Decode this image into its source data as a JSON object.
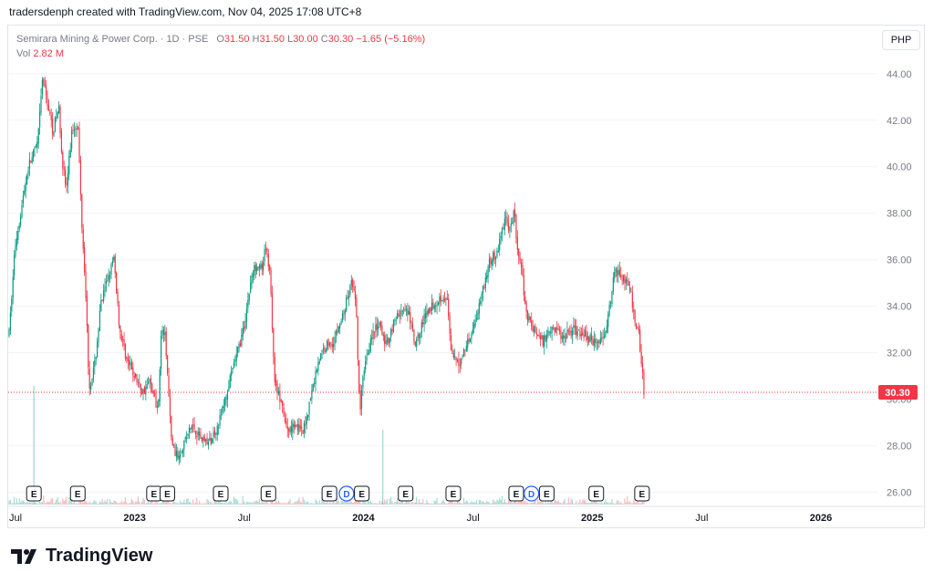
{
  "header": {
    "text": "tradersdenph created with TradingView.com, Nov 04, 2025 17:08 UTC+8"
  },
  "legend": {
    "symbol": "Semirara Mining & Power Corp. · 1D · PSE",
    "open_label": "O",
    "open": "31.50",
    "high_label": "H",
    "high": "31.50",
    "low_label": "L",
    "low": "30.00",
    "close_label": "C",
    "close": "30.30",
    "change": "−1.65 (−5.16%)",
    "vol_label": "Vol",
    "vol": "2.82 M"
  },
  "currency": "PHP",
  "brand": "TradingView",
  "colors": {
    "up": "#089981",
    "down": "#f23645",
    "price_line": "#f23645",
    "grid": "#f0f3fa",
    "axis_text": "#787b86"
  },
  "chart_data": {
    "type": "candlestick",
    "y_axis": {
      "ticks": [
        "44.00",
        "42.00",
        "40.00",
        "38.00",
        "36.00",
        "34.00",
        "32.00",
        "30.00",
        "28.00",
        "26.00"
      ],
      "ylim": [
        25.2,
        45.6
      ]
    },
    "x_axis": {
      "labels": [
        {
          "t": 0,
          "label": "Jul"
        },
        {
          "t": 6,
          "label": "2023"
        },
        {
          "t": 12,
          "label": "Jul"
        },
        {
          "t": 18,
          "label": "2024"
        },
        {
          "t": 24,
          "label": "Jul"
        },
        {
          "t": 30,
          "label": "2025"
        },
        {
          "t": 36,
          "label": "Jul"
        },
        {
          "t": 42,
          "label": "2026"
        }
      ]
    },
    "last_price": {
      "value": 30.3,
      "label": "30.30"
    },
    "price_path": [
      {
        "t": 0.0,
        "v": 32.8
      },
      {
        "t": 0.3,
        "v": 36.5
      },
      {
        "t": 0.7,
        "v": 38.5
      },
      {
        "t": 1.0,
        "v": 40.0
      },
      {
        "t": 1.5,
        "v": 41.0
      },
      {
        "t": 1.75,
        "v": 43.8
      },
      {
        "t": 2.0,
        "v": 42.8
      },
      {
        "t": 2.3,
        "v": 41.5
      },
      {
        "t": 2.6,
        "v": 42.6
      },
      {
        "t": 2.8,
        "v": 40.2
      },
      {
        "t": 3.0,
        "v": 39.0
      },
      {
        "t": 3.3,
        "v": 41.6
      },
      {
        "t": 3.6,
        "v": 41.9
      },
      {
        "t": 3.8,
        "v": 37.8
      },
      {
        "t": 4.0,
        "v": 35.0
      },
      {
        "t": 4.2,
        "v": 30.5
      },
      {
        "t": 4.5,
        "v": 31.5
      },
      {
        "t": 4.8,
        "v": 34.0
      },
      {
        "t": 5.2,
        "v": 35.3
      },
      {
        "t": 5.5,
        "v": 36.0
      },
      {
        "t": 5.8,
        "v": 33.0
      },
      {
        "t": 6.2,
        "v": 31.6
      },
      {
        "t": 6.6,
        "v": 31.0
      },
      {
        "t": 7.0,
        "v": 30.3
      },
      {
        "t": 7.4,
        "v": 30.8
      },
      {
        "t": 7.8,
        "v": 29.5
      },
      {
        "t": 8.0,
        "v": 33.1
      },
      {
        "t": 8.2,
        "v": 32.6
      },
      {
        "t": 8.5,
        "v": 28.3
      },
      {
        "t": 8.8,
        "v": 27.5
      },
      {
        "t": 9.2,
        "v": 28.2
      },
      {
        "t": 9.6,
        "v": 28.9
      },
      {
        "t": 10.0,
        "v": 28.4
      },
      {
        "t": 10.5,
        "v": 28.1
      },
      {
        "t": 11.0,
        "v": 29.0
      },
      {
        "t": 11.4,
        "v": 30.2
      },
      {
        "t": 11.8,
        "v": 31.5
      },
      {
        "t": 12.3,
        "v": 33.0
      },
      {
        "t": 12.7,
        "v": 35.2
      },
      {
        "t": 13.0,
        "v": 35.9
      },
      {
        "t": 13.3,
        "v": 35.5
      },
      {
        "t": 13.45,
        "v": 36.6
      },
      {
        "t": 13.7,
        "v": 35.4
      },
      {
        "t": 13.9,
        "v": 31.0
      },
      {
        "t": 14.2,
        "v": 30.0
      },
      {
        "t": 14.6,
        "v": 28.6
      },
      {
        "t": 15.0,
        "v": 29.0
      },
      {
        "t": 15.4,
        "v": 28.5
      },
      {
        "t": 15.8,
        "v": 30.0
      },
      {
        "t": 16.2,
        "v": 31.6
      },
      {
        "t": 16.6,
        "v": 32.3
      },
      {
        "t": 17.0,
        "v": 32.5
      },
      {
        "t": 17.4,
        "v": 33.3
      },
      {
        "t": 17.8,
        "v": 34.5
      },
      {
        "t": 18.0,
        "v": 35.1
      },
      {
        "t": 18.2,
        "v": 33.9
      },
      {
        "t": 18.4,
        "v": 29.3
      },
      {
        "t": 18.6,
        "v": 31.3
      },
      {
        "t": 19.0,
        "v": 32.7
      },
      {
        "t": 19.4,
        "v": 33.2
      },
      {
        "t": 19.8,
        "v": 32.3
      },
      {
        "t": 20.2,
        "v": 33.4
      },
      {
        "t": 20.6,
        "v": 33.8
      },
      {
        "t": 21.0,
        "v": 33.6
      },
      {
        "t": 21.3,
        "v": 32.2
      },
      {
        "t": 21.6,
        "v": 33.1
      },
      {
        "t": 22.0,
        "v": 33.9
      },
      {
        "t": 22.4,
        "v": 34.2
      },
      {
        "t": 22.8,
        "v": 34.5
      },
      {
        "t": 23.0,
        "v": 34.1
      },
      {
        "t": 23.2,
        "v": 31.8
      },
      {
        "t": 23.6,
        "v": 31.5
      },
      {
        "t": 24.0,
        "v": 32.4
      },
      {
        "t": 24.4,
        "v": 33.2
      },
      {
        "t": 24.8,
        "v": 34.6
      },
      {
        "t": 25.2,
        "v": 35.9
      },
      {
        "t": 25.6,
        "v": 36.3
      },
      {
        "t": 26.0,
        "v": 37.8
      },
      {
        "t": 26.3,
        "v": 37.2
      },
      {
        "t": 26.5,
        "v": 38.2
      },
      {
        "t": 26.7,
        "v": 36.0
      },
      {
        "t": 26.9,
        "v": 35.6
      },
      {
        "t": 27.1,
        "v": 33.8
      },
      {
        "t": 27.5,
        "v": 33.0
      },
      {
        "t": 28.0,
        "v": 32.5
      },
      {
        "t": 28.5,
        "v": 33.2
      },
      {
        "t": 29.0,
        "v": 32.7
      },
      {
        "t": 29.5,
        "v": 33.0
      },
      {
        "t": 30.0,
        "v": 32.9
      },
      {
        "t": 30.5,
        "v": 32.6
      },
      {
        "t": 31.0,
        "v": 32.4
      },
      {
        "t": 31.4,
        "v": 33.4
      },
      {
        "t": 31.8,
        "v": 35.6
      },
      {
        "t": 32.2,
        "v": 35.3
      },
      {
        "t": 32.6,
        "v": 34.6
      },
      {
        "t": 32.8,
        "v": 33.4
      },
      {
        "t": 33.0,
        "v": 33.1
      },
      {
        "t": 33.15,
        "v": 31.8
      },
      {
        "t": 33.3,
        "v": 30.3
      }
    ],
    "volume_spikes": [
      {
        "t": 1.3,
        "v": 1.0
      },
      {
        "t": 19.6,
        "v": 0.63
      }
    ],
    "events": [
      {
        "t": 1.3,
        "type": "E"
      },
      {
        "t": 3.6,
        "type": "E"
      },
      {
        "t": 7.6,
        "type": "E"
      },
      {
        "t": 8.3,
        "type": "E"
      },
      {
        "t": 11.1,
        "type": "E"
      },
      {
        "t": 13.6,
        "type": "E"
      },
      {
        "t": 16.8,
        "type": "E"
      },
      {
        "t": 17.7,
        "type": "D"
      },
      {
        "t": 18.5,
        "type": "E"
      },
      {
        "t": 20.8,
        "type": "E"
      },
      {
        "t": 23.3,
        "type": "E"
      },
      {
        "t": 26.6,
        "type": "E"
      },
      {
        "t": 27.4,
        "type": "D"
      },
      {
        "t": 28.2,
        "type": "E"
      },
      {
        "t": 30.8,
        "type": "E"
      },
      {
        "t": 33.2,
        "type": "E"
      }
    ]
  }
}
